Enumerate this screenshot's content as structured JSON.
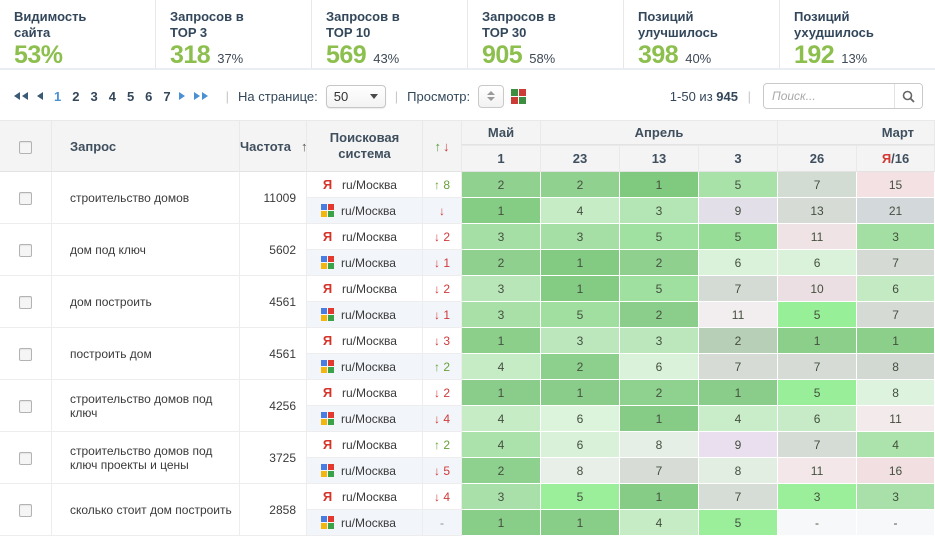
{
  "colors": {
    "accent_green": "#8cbf4d",
    "link_blue": "#4a90d2",
    "down_red": "#cf3a3a",
    "up_green": "#68a03c"
  },
  "icons": {
    "up": "↑",
    "down": "↓",
    "sep": "|"
  },
  "summary": {
    "cards": [
      {
        "lines": [
          "Видимость",
          "сайта"
        ],
        "value": "53%",
        "percent": ""
      },
      {
        "lines": [
          "Запросов в",
          "TOP 3"
        ],
        "value": "318",
        "percent": "37%"
      },
      {
        "lines": [
          "Запросов в",
          "TOP 10"
        ],
        "value": "569",
        "percent": "43%"
      },
      {
        "lines": [
          "Запросов в",
          "TOP 30"
        ],
        "value": "905",
        "percent": "58%"
      },
      {
        "lines": [
          "Позиций",
          "улучшилось"
        ],
        "value": "398",
        "percent": "40%"
      },
      {
        "lines": [
          "Позиций",
          "ухудшилось"
        ],
        "value": "192",
        "percent": "13%"
      }
    ]
  },
  "toolbar": {
    "pages": [
      "1",
      "2",
      "3",
      "4",
      "5",
      "6",
      "7"
    ],
    "active_page": "1",
    "per_page_label": "На странице:",
    "per_page_value": "50",
    "view_label": "Просмотр:",
    "view_grid_colors": [
      "#3e8e41",
      "#cc3b36",
      "#cc3b36",
      "#3e8e41"
    ],
    "range_prefix": "1-50 из",
    "range_total": "945",
    "search_placeholder": "Поиск..."
  },
  "table": {
    "col_query": "Запрос",
    "col_freq": "Частота",
    "col_engine": "Поисковая система",
    "months": [
      {
        "label": "Май",
        "span": 1,
        "align": "center"
      },
      {
        "label": "Апрель",
        "span": 3,
        "align": "center"
      },
      {
        "label": "Март",
        "span": 2,
        "align": "right"
      }
    ],
    "dates": [
      {
        "marker": "",
        "label": "1"
      },
      {
        "marker": "",
        "label": "23"
      },
      {
        "marker": "",
        "label": "13"
      },
      {
        "marker": "",
        "label": "3"
      },
      {
        "marker": "",
        "label": "26"
      },
      {
        "marker": "Я",
        "label": "/16"
      }
    ],
    "rows": [
      {
        "query": "строительство домов",
        "freq": "11009",
        "engines": [
          {
            "engine": "yandex",
            "region": "ru/Москва",
            "change": "↑ 8",
            "dir": "up",
            "cells": [
              {
                "v": "2",
                "bg": "#90d190"
              },
              {
                "v": "2",
                "bg": "#90d190"
              },
              {
                "v": "1",
                "bg": "#7fca7f"
              },
              {
                "v": "5",
                "bg": "#a9e2a9"
              },
              {
                "v": "7",
                "bg": "#d3dcd3"
              },
              {
                "v": "15",
                "bg": "#f4e1e4"
              }
            ]
          },
          {
            "engine": "google",
            "region": "ru/Москва",
            "change": "↓",
            "dir": "down",
            "cells": [
              {
                "v": "1",
                "bg": "#85cc85"
              },
              {
                "v": "4",
                "bg": "#c6ecc6"
              },
              {
                "v": "3",
                "bg": "#b4e5b4"
              },
              {
                "v": "9",
                "bg": "#e3dfe9"
              },
              {
                "v": "13",
                "bg": "#d6dbd6"
              },
              {
                "v": "21",
                "bg": "#d3d9da"
              }
            ]
          }
        ]
      },
      {
        "query": "дом под ключ",
        "freq": "5602",
        "engines": [
          {
            "engine": "yandex",
            "region": "ru/Москва",
            "change": "↓ 2",
            "dir": "down",
            "cells": [
              {
                "v": "3",
                "bg": "#a5dfa5"
              },
              {
                "v": "3",
                "bg": "#a5dfa5"
              },
              {
                "v": "5",
                "bg": "#a0e0a0"
              },
              {
                "v": "5",
                "bg": "#97dd97"
              },
              {
                "v": "11",
                "bg": "#f0e3e6"
              },
              {
                "v": "3",
                "bg": "#a3dfa3"
              }
            ]
          },
          {
            "engine": "google",
            "region": "ru/Москва",
            "change": "↓ 1",
            "dir": "down",
            "cells": [
              {
                "v": "2",
                "bg": "#8fd08f"
              },
              {
                "v": "1",
                "bg": "#83cb83"
              },
              {
                "v": "2",
                "bg": "#8fd08f"
              },
              {
                "v": "6",
                "bg": "#d9f2d9"
              },
              {
                "v": "6",
                "bg": "#d9f2d9"
              },
              {
                "v": "7",
                "bg": "#d5dad5"
              }
            ]
          }
        ]
      },
      {
        "query": "дом построить",
        "freq": "4561",
        "engines": [
          {
            "engine": "yandex",
            "region": "ru/Москва",
            "change": "↓ 2",
            "dir": "down",
            "cells": [
              {
                "v": "3",
                "bg": "#b8e6b8"
              },
              {
                "v": "1",
                "bg": "#84cc84"
              },
              {
                "v": "5",
                "bg": "#9fdf9f"
              },
              {
                "v": "7",
                "bg": "#d4dbd4"
              },
              {
                "v": "10",
                "bg": "#ecdfe3"
              },
              {
                "v": "6",
                "bg": "#c4eac4"
              }
            ]
          },
          {
            "engine": "google",
            "region": "ru/Москва",
            "change": "↓ 1",
            "dir": "down",
            "cells": [
              {
                "v": "3",
                "bg": "#a8e0a8"
              },
              {
                "v": "5",
                "bg": "#a0dfa0"
              },
              {
                "v": "2",
                "bg": "#8bce8b"
              },
              {
                "v": "11",
                "bg": "#f2edee"
              },
              {
                "v": "5",
                "bg": "#97ef97"
              },
              {
                "v": "7",
                "bg": "#d5dad5"
              }
            ]
          }
        ]
      },
      {
        "query": "построить дом",
        "freq": "4561",
        "engines": [
          {
            "engine": "yandex",
            "region": "ru/Москва",
            "change": "↓ 3",
            "dir": "down",
            "cells": [
              {
                "v": "1",
                "bg": "#8bcf8b"
              },
              {
                "v": "3",
                "bg": "#bce7bc"
              },
              {
                "v": "3",
                "bg": "#bce7bc"
              },
              {
                "v": "2",
                "bg": "#b7cfb7"
              },
              {
                "v": "1",
                "bg": "#8bcf8b"
              },
              {
                "v": "1",
                "bg": "#8bcf8b"
              }
            ]
          },
          {
            "engine": "google",
            "region": "ru/Москва",
            "change": "↑ 2",
            "dir": "up",
            "cells": [
              {
                "v": "4",
                "bg": "#c6ecc6"
              },
              {
                "v": "2",
                "bg": "#8dd08d"
              },
              {
                "v": "6",
                "bg": "#daf2da"
              },
              {
                "v": "7",
                "bg": "#d6dbd6"
              },
              {
                "v": "7",
                "bg": "#d6dbd6"
              },
              {
                "v": "8",
                "bg": "#d2d8d2"
              }
            ]
          }
        ]
      },
      {
        "query": "строительство домов под ключ",
        "freq": "4256",
        "engines": [
          {
            "engine": "yandex",
            "region": "ru/Москва",
            "change": "↓ 2",
            "dir": "down",
            "cells": [
              {
                "v": "1",
                "bg": "#8acd8a"
              },
              {
                "v": "1",
                "bg": "#8acd8a"
              },
              {
                "v": "2",
                "bg": "#8fd18f"
              },
              {
                "v": "1",
                "bg": "#8acd8a"
              },
              {
                "v": "5",
                "bg": "#99ef99"
              },
              {
                "v": "8",
                "bg": "#ddf3dd"
              }
            ]
          },
          {
            "engine": "google",
            "region": "ru/Москва",
            "change": "↓ 4",
            "dir": "down",
            "cells": [
              {
                "v": "4",
                "bg": "#c6ecc6"
              },
              {
                "v": "6",
                "bg": "#dcf3dc"
              },
              {
                "v": "1",
                "bg": "#86cc86"
              },
              {
                "v": "4",
                "bg": "#c9edc9"
              },
              {
                "v": "6",
                "bg": "#c6ebc6"
              },
              {
                "v": "11",
                "bg": "#f3eaec"
              }
            ]
          }
        ]
      },
      {
        "query": "строительство домов под ключ проекты и цены",
        "freq": "3725",
        "engines": [
          {
            "engine": "yandex",
            "region": "ru/Москва",
            "change": "↑ 2",
            "dir": "up",
            "cells": [
              {
                "v": "4",
                "bg": "#abe1ab"
              },
              {
                "v": "6",
                "bg": "#d8f1d8"
              },
              {
                "v": "8",
                "bg": "#e6efe6"
              },
              {
                "v": "9",
                "bg": "#eadfee"
              },
              {
                "v": "7",
                "bg": "#d5dcd5"
              },
              {
                "v": "4",
                "bg": "#ace2ac"
              }
            ]
          },
          {
            "engine": "google",
            "region": "ru/Москва",
            "change": "↓ 5",
            "dir": "down",
            "cells": [
              {
                "v": "2",
                "bg": "#8ed08e"
              },
              {
                "v": "8",
                "bg": "#e8eee8"
              },
              {
                "v": "7",
                "bg": "#d7dcd7"
              },
              {
                "v": "8",
                "bg": "#e3eee3"
              },
              {
                "v": "11",
                "bg": "#f4e7e9"
              },
              {
                "v": "16",
                "bg": "#f2dfe2"
              }
            ]
          }
        ]
      },
      {
        "query": "сколько стоит дом построить",
        "freq": "2858",
        "engines": [
          {
            "engine": "yandex",
            "region": "ru/Москва",
            "change": "↓ 4",
            "dir": "down",
            "cells": [
              {
                "v": "3",
                "bg": "#a9e0a9"
              },
              {
                "v": "5",
                "bg": "#9bef9b"
              },
              {
                "v": "1",
                "bg": "#86cc86"
              },
              {
                "v": "7",
                "bg": "#d6dcd6"
              },
              {
                "v": "3",
                "bg": "#9bef9b"
              },
              {
                "v": "3",
                "bg": "#a9e0a9"
              }
            ]
          },
          {
            "engine": "google",
            "region": "ru/Москва",
            "change": "-",
            "dir": "none",
            "cells": [
              {
                "v": "1",
                "bg": "#88cd88"
              },
              {
                "v": "1",
                "bg": "#88cd88"
              },
              {
                "v": "4",
                "bg": "#c6ecc6"
              },
              {
                "v": "5",
                "bg": "#9bef9b"
              },
              {
                "v": "-",
                "bg": "#f6f8f9"
              },
              {
                "v": "-",
                "bg": "#f6f8f9"
              }
            ]
          }
        ]
      }
    ]
  }
}
